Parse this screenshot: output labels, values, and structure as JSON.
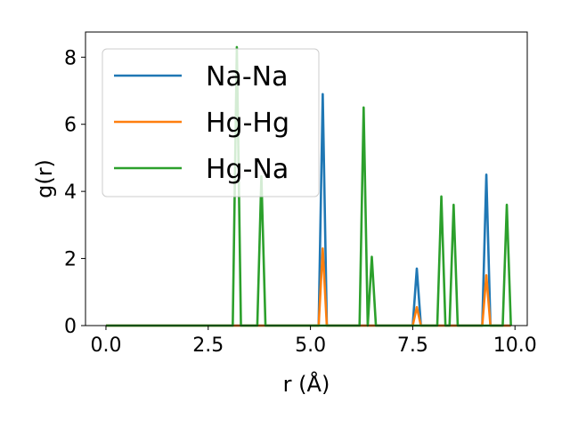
{
  "chart_data": {
    "type": "line",
    "xlabel": "r (Å)",
    "ylabel": "g(r)",
    "xlim": [
      -0.5,
      10.3
    ],
    "ylim": [
      0,
      8.75
    ],
    "x_ticks": [
      "0.0",
      "2.5",
      "5.0",
      "7.5",
      "10.0"
    ],
    "y_ticks": [
      "0",
      "2",
      "4",
      "6",
      "8"
    ],
    "grid": false,
    "legend_position": "top-left",
    "colors": {
      "Na-Na": "#1f77b4",
      "Hg-Hg": "#ff7f0e",
      "Hg-Na": "#2ca02c"
    },
    "series": [
      {
        "name": "Na-Na",
        "color": "#1f77b4",
        "peaks": [
          [
            5.3,
            6.9
          ],
          [
            7.6,
            1.7
          ],
          [
            9.3,
            4.5
          ]
        ]
      },
      {
        "name": "Hg-Hg",
        "color": "#ff7f0e",
        "peaks": [
          [
            5.3,
            2.3
          ],
          [
            7.6,
            0.55
          ],
          [
            9.3,
            1.5
          ]
        ]
      },
      {
        "name": "Hg-Na",
        "color": "#2ca02c",
        "peaks": [
          [
            3.2,
            8.3
          ],
          [
            3.8,
            4.45
          ],
          [
            6.3,
            6.5
          ],
          [
            6.5,
            2.05
          ],
          [
            8.2,
            3.85
          ],
          [
            8.5,
            3.6
          ],
          [
            9.8,
            3.6
          ]
        ]
      }
    ],
    "x_range": [
      0.0,
      9.9
    ],
    "step": 0.1
  }
}
